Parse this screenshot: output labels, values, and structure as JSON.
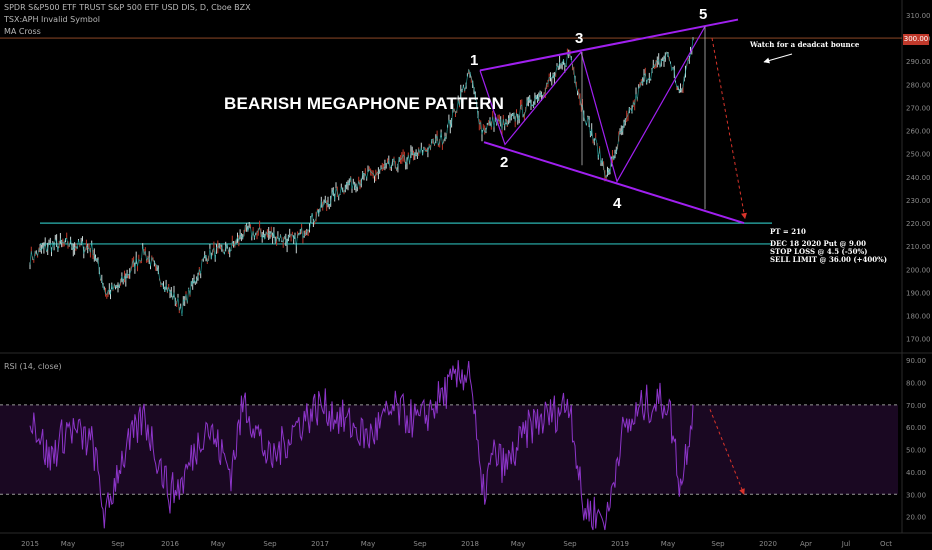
{
  "header": {
    "title": "SPDR S&P500 ETF TRUST S&P 500 ETF USD DIS, D, Cboe BZX",
    "indicator1": "TSX:APH Invalid Symbol",
    "indicator2": "MA Cross"
  },
  "annotations": {
    "pattern_title": "BEARISH MEGAPHONE PATTERN",
    "wave_labels": [
      "1",
      "2",
      "3",
      "4",
      "5"
    ],
    "deadcat_note": "Watch for a deadcat bounce",
    "pt_note": "PT = 210",
    "trade_notes": [
      "DEC 18 2020 Put @ 9.00",
      "STOP LOSS @ 4.5 (-50%)",
      "SELL LIMIT @ 36.00 (+400%)"
    ]
  },
  "rsi_label": "RSI (14, close)",
  "price_tag": "300.00",
  "colors": {
    "background": "#000000",
    "megaphone": "#a020f0",
    "support": "#2bb6b2",
    "rsi_line": "#8d35c9",
    "rsi_band": "#1a0822",
    "projection": "#d9342b",
    "price_level": "#a0522d"
  },
  "chart_data": [
    {
      "type": "line",
      "title": "SPDR S&P500 ETF TRUST S&P 500 ETF USD DIS, D, Cboe BZX",
      "x_ticks": [
        "2015",
        "May",
        "Sep",
        "2016",
        "May",
        "Sep",
        "2017",
        "May",
        "Sep",
        "2018",
        "May",
        "Sep",
        "2019",
        "May",
        "Sep",
        "2020",
        "Apr",
        "Jul",
        "Oct"
      ],
      "y_ticks": [
        170,
        180,
        190,
        200,
        210,
        220,
        230,
        240,
        250,
        260,
        270,
        280,
        290,
        300,
        310
      ],
      "ylim": [
        166,
        313
      ],
      "series": [
        {
          "x": [
            "2015-01",
            "2015-03",
            "2015-05",
            "2015-07",
            "2015-08",
            "2015-09",
            "2015-11",
            "2016-01",
            "2016-02",
            "2016-04",
            "2016-06",
            "2016-07",
            "2016-09",
            "2016-11",
            "2017-01",
            "2017-03",
            "2017-05",
            "2017-07",
            "2017-09",
            "2017-11",
            "2018-01",
            "2018-02",
            "2018-03",
            "2018-04",
            "2018-06",
            "2018-08",
            "2018-09",
            "2018-10",
            "2018-12",
            "2019-01",
            "2019-03",
            "2019-05",
            "2019-06",
            "2019-07"
          ],
          "values": [
            205,
            210,
            211,
            209,
            190,
            192,
            208,
            190,
            183,
            206,
            209,
            216,
            215,
            212,
            226,
            236,
            240,
            245,
            250,
            258,
            285,
            260,
            264,
            262,
            272,
            285,
            293,
            270,
            240,
            257,
            282,
            293,
            275,
            300
          ]
        }
      ],
      "support_levels": [
        220,
        211
      ],
      "resistance_level": 300,
      "megaphone_upper": {
        "x": [
          "2018-01",
          "2019-07"
        ],
        "values": [
          286,
          305
        ]
      },
      "megaphone_lower": {
        "x": [
          "2018-02",
          "2019-12"
        ],
        "values": [
          255,
          220
        ]
      },
      "price_target": 210
    },
    {
      "type": "line",
      "title": "RSI (14, close)",
      "y_ticks": [
        20,
        30,
        40,
        50,
        60,
        70,
        80,
        90
      ],
      "ylim": [
        14,
        91
      ],
      "bands": [
        30,
        70
      ],
      "series": [
        {
          "x": [
            "2015-01",
            "2015-03",
            "2015-05",
            "2015-07",
            "2015-08",
            "2015-09",
            "2015-11",
            "2016-01",
            "2016-02",
            "2016-04",
            "2016-06",
            "2016-07",
            "2016-09",
            "2016-11",
            "2017-01",
            "2017-03",
            "2017-05",
            "2017-07",
            "2017-09",
            "2017-11",
            "2018-01",
            "2018-02",
            "2018-03",
            "2018-04",
            "2018-06",
            "2018-08",
            "2018-09",
            "2018-10",
            "2018-12",
            "2019-01",
            "2019-03",
            "2019-05",
            "2019-06",
            "2019-07"
          ],
          "values": [
            68,
            45,
            60,
            52,
            18,
            42,
            65,
            30,
            35,
            62,
            40,
            72,
            44,
            60,
            70,
            63,
            55,
            68,
            62,
            76,
            87,
            28,
            48,
            42,
            61,
            67,
            72,
            24,
            19,
            55,
            70,
            72,
            33,
            70
          ]
        }
      ]
    }
  ]
}
